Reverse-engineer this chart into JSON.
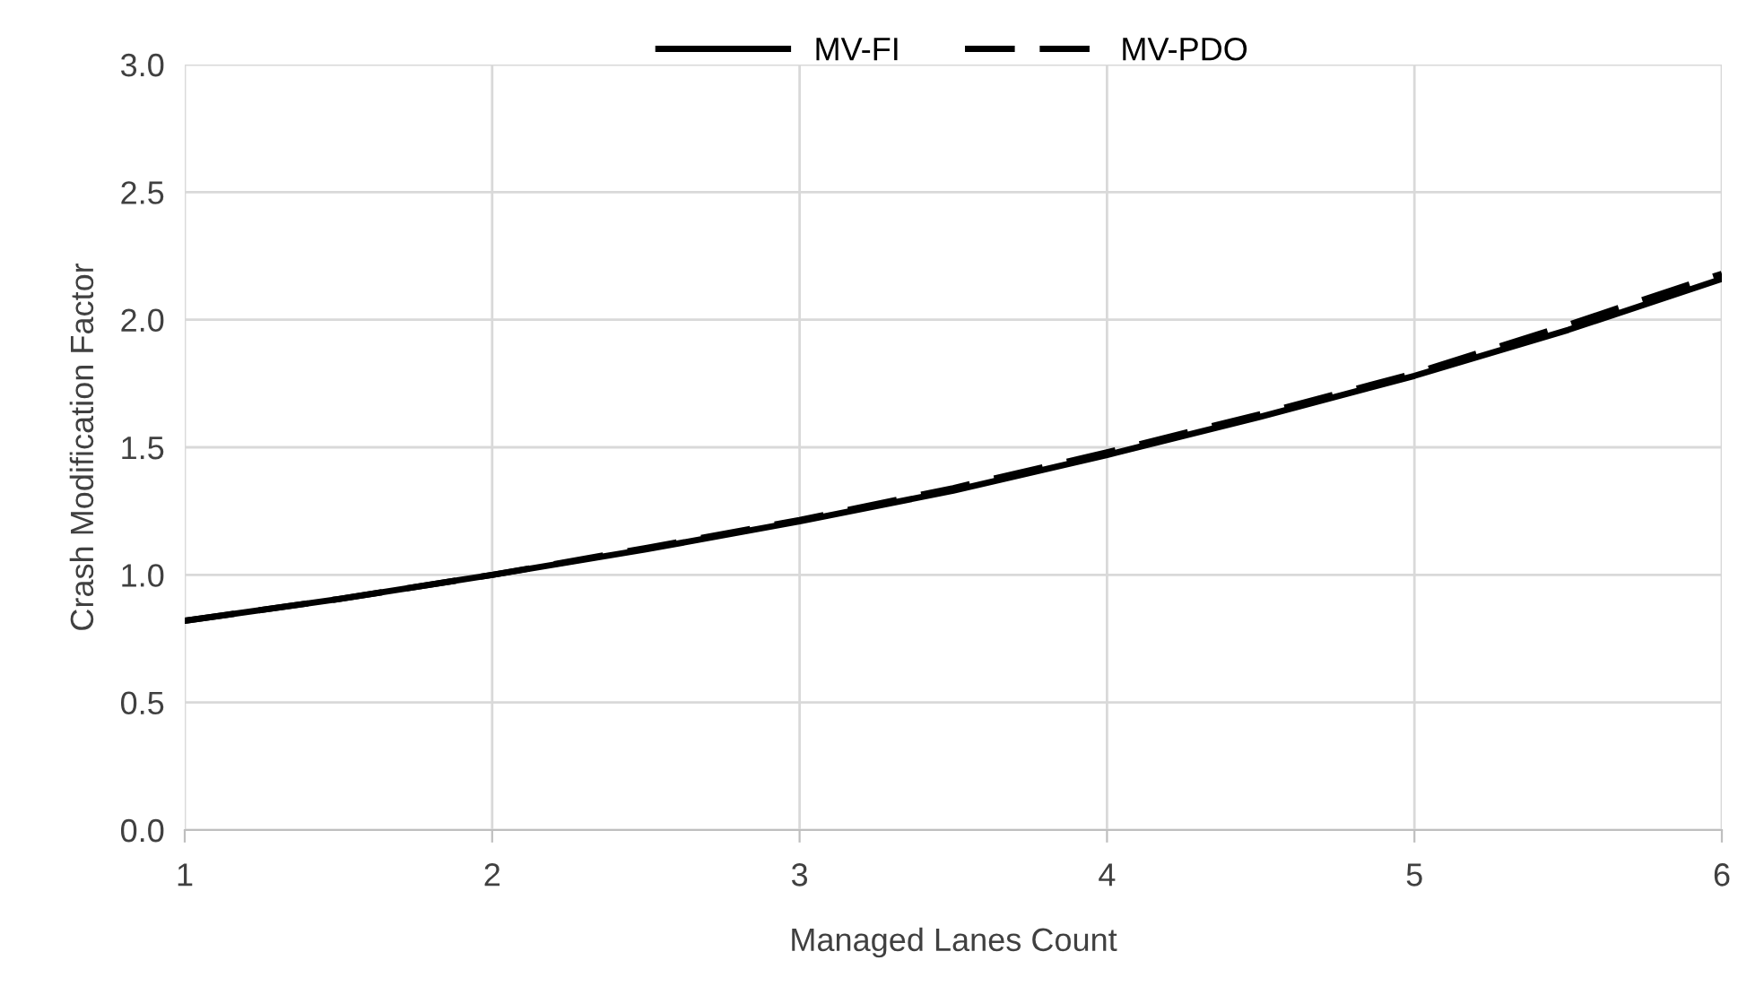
{
  "chart_data": {
    "type": "line",
    "xlabel": "Managed Lanes Count",
    "ylabel": "Crash Modification Factor",
    "x": [
      1,
      1.5,
      2,
      2.5,
      3,
      3.5,
      4,
      4.5,
      5,
      5.5,
      6
    ],
    "series": [
      {
        "name": "MV-FI",
        "color": "#000000",
        "line_style": "solid",
        "values": [
          0.82,
          0.905,
          1.0,
          1.1,
          1.21,
          1.33,
          1.47,
          1.62,
          1.78,
          1.96,
          2.16
        ]
      },
      {
        "name": "MV-PDO",
        "color": "#000000",
        "line_style": "dashed",
        "values": [
          0.82,
          0.905,
          1.0,
          1.105,
          1.215,
          1.34,
          1.48,
          1.63,
          1.79,
          1.98,
          2.18
        ]
      }
    ],
    "xlim": [
      1,
      6
    ],
    "xticks": [
      1,
      2,
      3,
      4,
      5,
      6
    ],
    "ylim": [
      0,
      3
    ],
    "yticks": [
      {
        "value": 0,
        "label": "0.0"
      },
      {
        "value": 0.5,
        "label": "0.5"
      },
      {
        "value": 1,
        "label": "1.0"
      },
      {
        "value": 1.5,
        "label": "1.5"
      },
      {
        "value": 2,
        "label": "2.0"
      },
      {
        "value": 2.5,
        "label": "2.5"
      },
      {
        "value": 3,
        "label": "3.0"
      }
    ],
    "grid": true,
    "legend": "top",
    "marker": "none"
  }
}
